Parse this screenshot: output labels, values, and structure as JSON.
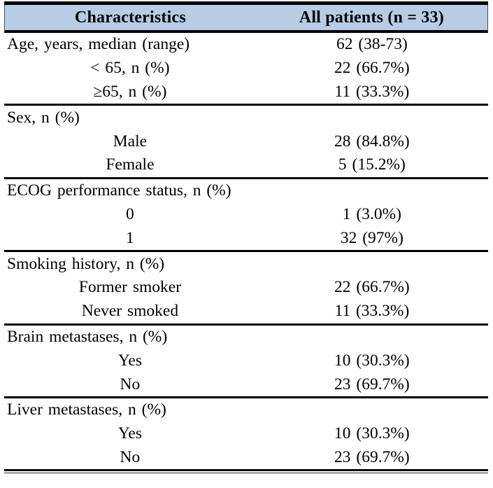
{
  "style": {
    "header_bg": "#b8cce4",
    "border_color": "#000000",
    "text_color": "#000000"
  },
  "table": {
    "header": {
      "characteristics": "Characteristics",
      "all_patients": "All patients (n = 33)"
    },
    "sections": [
      {
        "rows": [
          {
            "label": "Age, years, median (range)",
            "value": "62 (38-73)",
            "indent": false
          },
          {
            "label": "< 65, n (%)",
            "value": "22 (66.7%)",
            "indent": true
          },
          {
            "label": "≥65, n (%)",
            "value": "11 (33.3%)",
            "indent": true
          }
        ]
      },
      {
        "rows": [
          {
            "label": "Sex, n (%)",
            "value": "",
            "indent": false
          },
          {
            "label": "Male",
            "value": "28 (84.8%)",
            "indent": true
          },
          {
            "label": "Female",
            "value": "5 (15.2%)",
            "indent": true
          }
        ]
      },
      {
        "rows": [
          {
            "label": "ECOG performance status, n (%)",
            "value": "",
            "indent": false
          },
          {
            "label": "0",
            "value": "1 (3.0%)",
            "indent": true
          },
          {
            "label": "1",
            "value": "32 (97%)",
            "indent": true
          }
        ]
      },
      {
        "rows": [
          {
            "label": "Smoking history, n (%)",
            "value": "",
            "indent": false
          },
          {
            "label": "Former smoker",
            "value": "22 (66.7%)",
            "indent": true
          },
          {
            "label": "Never smoked",
            "value": "11 (33.3%)",
            "indent": true
          }
        ]
      },
      {
        "rows": [
          {
            "label": "Brain metastases, n (%)",
            "value": "",
            "indent": false
          },
          {
            "label": "Yes",
            "value": "10 (30.3%)",
            "indent": true
          },
          {
            "label": "No",
            "value": "23 (69.7%)",
            "indent": true
          }
        ]
      },
      {
        "rows": [
          {
            "label": "Liver metastases, n (%)",
            "value": "",
            "indent": false
          },
          {
            "label": "Yes",
            "value": "10 (30.3%)",
            "indent": true
          },
          {
            "label": "No",
            "value": "23 (69.7%)",
            "indent": true
          }
        ]
      }
    ]
  }
}
